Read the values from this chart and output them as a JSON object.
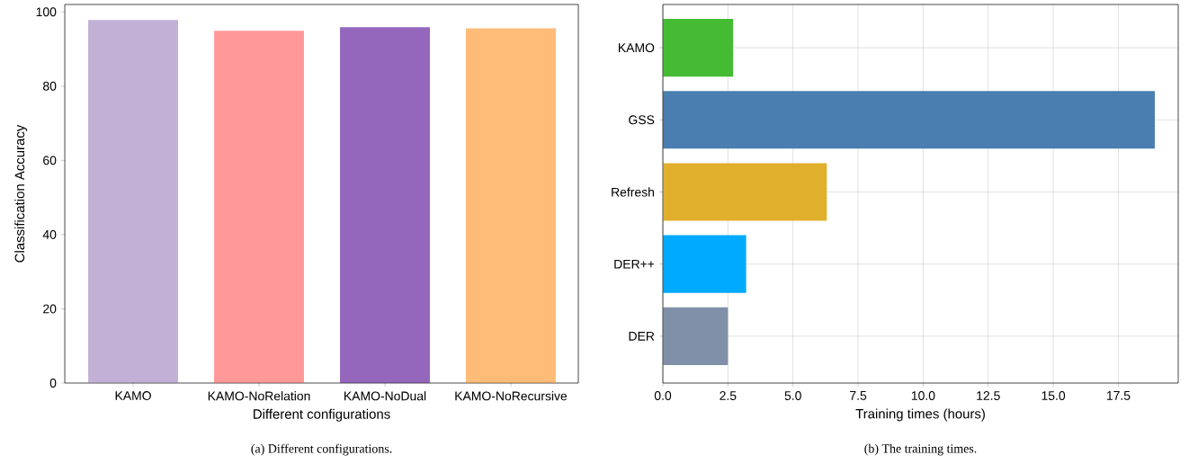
{
  "chart_data": [
    {
      "type": "bar",
      "categories": [
        "KAMO",
        "KAMO-NoRelation",
        "KAMO-NoDual",
        "KAMO-NoRecursive"
      ],
      "values": [
        97.8,
        94.9,
        95.9,
        95.6
      ],
      "colors": [
        "#c3b0d6",
        "#ff9999",
        "#9467bd",
        "#ffbb78"
      ],
      "xlabel": "Different configurations",
      "ylabel": "Classification Accuracy",
      "ylim": [
        0,
        102
      ],
      "yticks": [
        0,
        20,
        40,
        60,
        80,
        100
      ],
      "annotations": [
        "(a)  Different configurations."
      ]
    },
    {
      "type": "bar",
      "orientation": "horizontal",
      "categories": [
        "KAMO",
        "GSS",
        "Refresh",
        "DER++",
        "DER"
      ],
      "values": [
        2.7,
        18.9,
        6.3,
        3.2,
        2.5
      ],
      "colors": [
        "#44bb33",
        "#4a7eb0",
        "#e0b02c",
        "#00aaff",
        "#8090a8"
      ],
      "xlabel": "Training times (hours)",
      "xlim": [
        0,
        19.8
      ],
      "xticks": [
        {
          "value": 0,
          "label": "0.0"
        },
        {
          "value": 2.5,
          "label": "2.5"
        },
        {
          "value": 5,
          "label": "5.0"
        },
        {
          "value": 7.5,
          "label": "7.5"
        },
        {
          "value": 10,
          "label": "10.0"
        },
        {
          "value": 12.5,
          "label": "12.5"
        },
        {
          "value": 15,
          "label": "15.0"
        },
        {
          "value": 17.5,
          "label": "17.5"
        }
      ],
      "grid": true,
      "annotations": [
        "(b)  The training times."
      ]
    }
  ]
}
